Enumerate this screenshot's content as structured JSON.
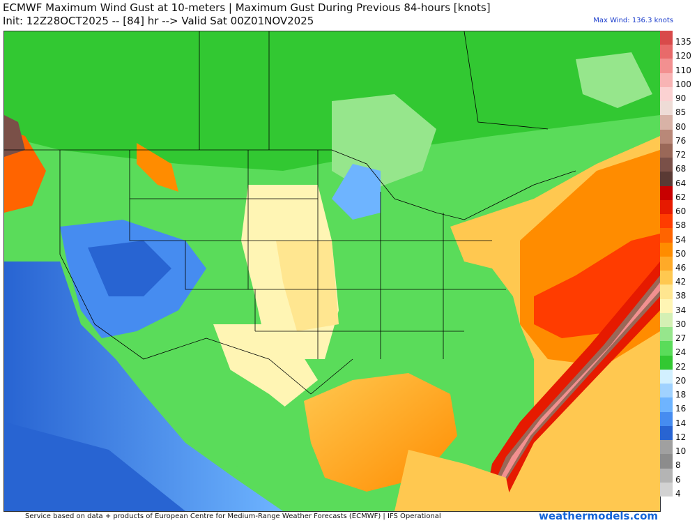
{
  "header": {
    "title_line1": "ECMWF Maximum Wind Gust at 10-meters | Maximum Gust During Previous 84-hours [knots]",
    "title_line2": "Init: 12Z28OCT2025 -- [84] hr --> Valid Sat 00Z01NOV2025",
    "max_wind": "Max Wind: 136.3 knots"
  },
  "colorbar": {
    "labels": [
      "135",
      "120",
      "110",
      "100",
      "90",
      "85",
      "80",
      "76",
      "72",
      "68",
      "64",
      "62",
      "60",
      "58",
      "54",
      "50",
      "46",
      "42",
      "38",
      "34",
      "30",
      "27",
      "24",
      "22",
      "20",
      "18",
      "16",
      "14",
      "12",
      "10",
      "8",
      "6",
      "4"
    ],
    "colors": [
      "#d84a4a",
      "#e86a6a",
      "#f29090",
      "#f8b4b4",
      "#fbd2d2",
      "#eedcd6",
      "#d8b2a6",
      "#b98878",
      "#9a6858",
      "#7a5048",
      "#5a3a34",
      "#c80000",
      "#e61a00",
      "#ff3c00",
      "#ff6400",
      "#ff8c00",
      "#ffaa28",
      "#ffc850",
      "#ffe690",
      "#fff5b4",
      "#d4f0b4",
      "#96e68c",
      "#5adc5a",
      "#32c832",
      "#d2f0ff",
      "#a0d2ff",
      "#6eb4ff",
      "#468cf0",
      "#2864d2",
      "#a0a0a0",
      "#8c8c8c",
      "#b4b4b4",
      "#d2d2d2"
    ]
  },
  "map": {
    "water_color": "#6ab4ef",
    "land_color": "#58d26a",
    "high_wind_color": "#ff8c00",
    "extreme_wind_color": "#e86a6a"
  },
  "footer": {
    "credit": "Service based on data + products of European Centre for Medium-Range Weather Forecasts (ECMWF) | IFS Operational",
    "brand": "weathermodels.com"
  }
}
